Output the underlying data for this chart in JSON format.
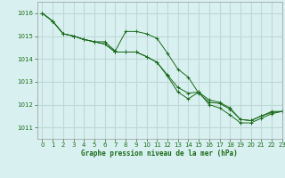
{
  "title": "Graphe pression niveau de la mer (hPa)",
  "bg_color": "#d8f0f0",
  "grid_color": "#c0d8d8",
  "line_color": "#1a6b1a",
  "xlim": [
    -0.5,
    23
  ],
  "ylim": [
    1010.5,
    1016.5
  ],
  "yticks": [
    1011,
    1012,
    1013,
    1014,
    1015,
    1016
  ],
  "xticks": [
    0,
    1,
    2,
    3,
    4,
    5,
    6,
    7,
    8,
    9,
    10,
    11,
    12,
    13,
    14,
    15,
    16,
    17,
    18,
    19,
    20,
    21,
    22,
    23
  ],
  "series1": [
    1016.0,
    1015.65,
    1015.1,
    1015.0,
    1014.85,
    1014.75,
    1014.75,
    1014.35,
    1015.2,
    1015.2,
    1015.1,
    1014.9,
    1014.25,
    1013.55,
    1013.2,
    1012.5,
    1012.1,
    1012.05,
    1011.8,
    1011.35,
    1011.3,
    1011.5,
    1011.65,
    1011.7
  ],
  "series2": [
    1016.0,
    1015.65,
    1015.1,
    1015.0,
    1014.85,
    1014.75,
    1014.65,
    1014.3,
    1014.3,
    1014.3,
    1014.1,
    1013.85,
    1013.3,
    1012.75,
    1012.5,
    1012.55,
    1012.2,
    1012.1,
    1011.85,
    1011.35,
    1011.3,
    1011.5,
    1011.7,
    1011.7
  ],
  "series3": [
    1016.0,
    1015.65,
    1015.1,
    1015.0,
    1014.85,
    1014.75,
    1014.65,
    1014.3,
    1014.3,
    1014.3,
    1014.1,
    1013.85,
    1013.25,
    1012.55,
    1012.25,
    1012.55,
    1012.0,
    1011.85,
    1011.55,
    1011.2,
    1011.2,
    1011.4,
    1011.6,
    1011.7
  ]
}
